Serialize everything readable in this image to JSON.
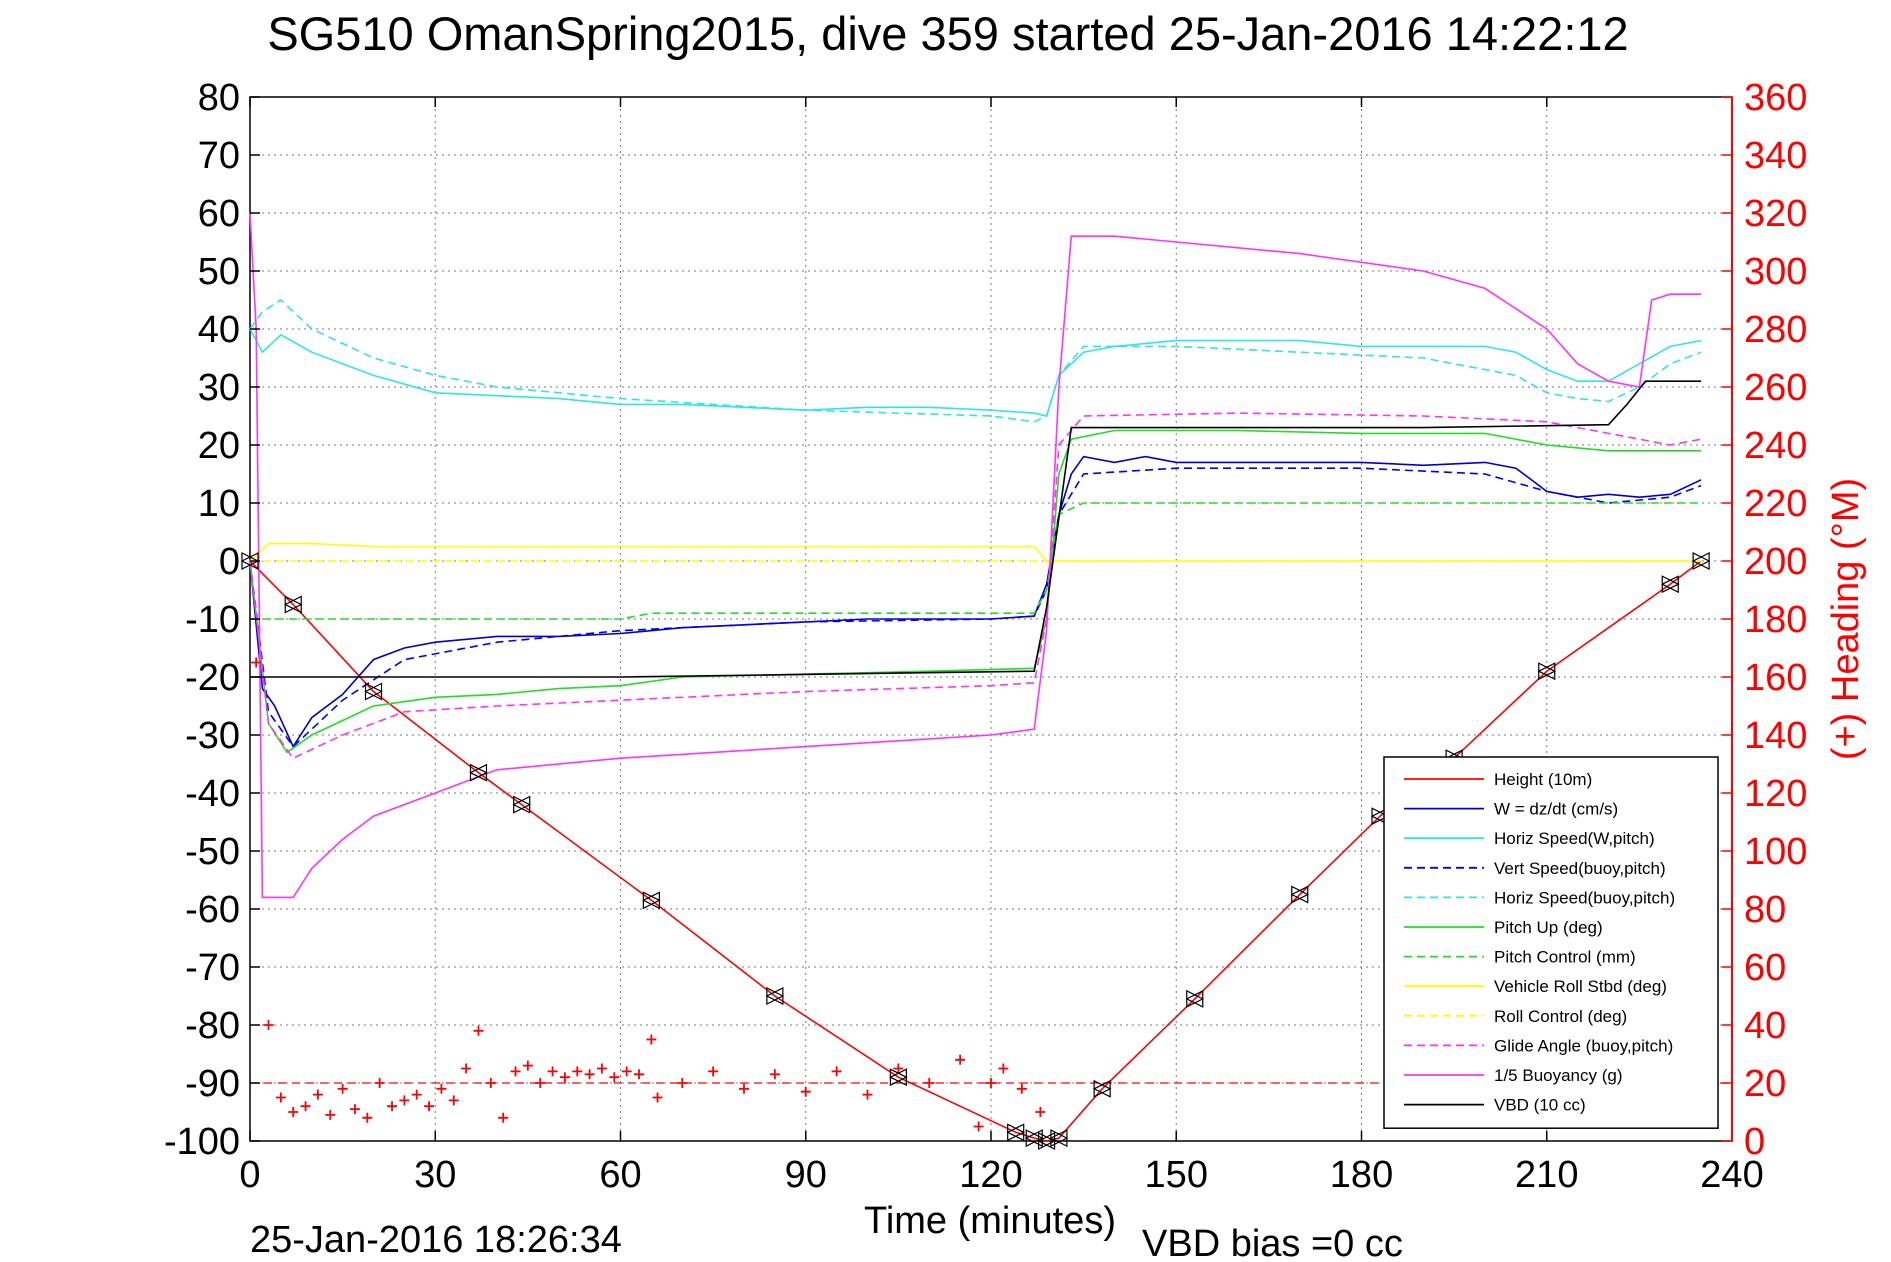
{
  "chart_data": {
    "type": "line",
    "title": "SG510 OmanSpring2015, dive 359 started 25-Jan-2016 14:22:12",
    "xlabel": "Time (minutes)",
    "ylabel_right": "(+) Heading (°M)",
    "footer_left": "25-Jan-2016 18:26:34",
    "footer_right": "VBD bias =0 cc",
    "xlim": [
      0,
      240
    ],
    "ylim": [
      -100,
      80
    ],
    "y2lim": [
      0,
      360
    ],
    "xticks": [
      0,
      30,
      60,
      90,
      120,
      150,
      180,
      210,
      240
    ],
    "yticks": [
      80,
      70,
      60,
      50,
      40,
      30,
      20,
      10,
      0,
      -10,
      -20,
      -30,
      -40,
      -50,
      -60,
      -70,
      -80,
      -90,
      -100
    ],
    "y2ticks": [
      360,
      340,
      320,
      300,
      280,
      260,
      240,
      220,
      200,
      180,
      160,
      140,
      120,
      100,
      80,
      60,
      40,
      20,
      0
    ],
    "grid": true,
    "legend_position": "bottom-right",
    "colors": {
      "height": "#ff0000",
      "w": "#0000cd",
      "horiz_w": "#2ee6e6",
      "vert_buoy": "#0000ff",
      "horiz_buoy": "#2ee6e6",
      "pitch_up": "#22dd22",
      "pitch_control": "#22dd22",
      "roll": "#ffff00",
      "roll_control": "#ffff00",
      "glide": "#ff33ff",
      "buoyancy": "#ff33ff",
      "vbd": "#000000",
      "heading": "#ff0000",
      "right_axis": "#ff0000"
    },
    "series": [
      {
        "name": "Height (10m)",
        "key": "height",
        "style": "solid",
        "x": [
          0,
          7,
          20,
          37,
          44,
          65,
          85,
          105,
          124,
          127,
          129,
          131,
          138,
          153,
          170,
          183,
          195,
          210,
          230,
          235
        ],
        "y": [
          0,
          -7.5,
          -22.5,
          -36.5,
          -42,
          -58.5,
          -75,
          -89,
          -98.5,
          -99.5,
          -100,
          -99.5,
          -91,
          -75.5,
          -57.5,
          -44,
          -34,
          -19,
          -4,
          0
        ]
      },
      {
        "name": "W = dz/dt (cm/s)",
        "key": "w",
        "style": "solid",
        "x": [
          0,
          2,
          4,
          7,
          10,
          15,
          20,
          25,
          30,
          40,
          50,
          60,
          70,
          80,
          90,
          100,
          110,
          120,
          127,
          129,
          131,
          133,
          135,
          140,
          145,
          150,
          160,
          170,
          180,
          190,
          200,
          205,
          210,
          215,
          220,
          225,
          230,
          235
        ],
        "y": [
          0,
          -22,
          -25,
          -32,
          -27,
          -23,
          -17,
          -15,
          -14,
          -13,
          -13,
          -12.5,
          -11.5,
          -11,
          -10.5,
          -10,
          -10,
          -10,
          -9.5,
          -4,
          8,
          15,
          18,
          17,
          18,
          17,
          17,
          17,
          17,
          16.5,
          17,
          16,
          12,
          11,
          11.5,
          11,
          11.5,
          14
        ]
      },
      {
        "name": "Horiz Speed(W,pitch)",
        "key": "horiz_w",
        "style": "solid",
        "x": [
          0,
          2,
          5,
          10,
          20,
          30,
          40,
          50,
          60,
          70,
          80,
          90,
          100,
          110,
          120,
          127,
          129,
          131,
          135,
          140,
          150,
          160,
          170,
          180,
          190,
          200,
          205,
          210,
          215,
          220,
          225,
          230,
          235
        ],
        "y": [
          40,
          36,
          39,
          36,
          32,
          29,
          28.5,
          28,
          27,
          27,
          26.5,
          26,
          26.5,
          26.5,
          26,
          25.5,
          25,
          32,
          36,
          37,
          38,
          38,
          38,
          37,
          37,
          37,
          36,
          33,
          31,
          31,
          34,
          37,
          38
        ]
      },
      {
        "name": "Vert Speed(buoy,pitch)",
        "key": "vert_buoy",
        "style": "dashed",
        "x": [
          0,
          3,
          7,
          15,
          25,
          40,
          60,
          90,
          120,
          127,
          129,
          131,
          135,
          150,
          180,
          200,
          210,
          220,
          230,
          235
        ],
        "y": [
          0,
          -26,
          -32,
          -24,
          -17,
          -14,
          -12,
          -10.5,
          -10,
          -9.5,
          -5,
          8,
          15,
          16,
          16,
          15,
          12,
          10,
          11,
          13
        ]
      },
      {
        "name": "Horiz Speed(buoy,pitch)",
        "key": "horiz_buoy",
        "style": "dashed",
        "x": [
          0,
          2,
          5,
          10,
          20,
          30,
          40,
          60,
          90,
          120,
          127,
          129,
          131,
          135,
          150,
          170,
          190,
          200,
          205,
          210,
          215,
          220,
          225,
          230,
          235
        ],
        "y": [
          40,
          43,
          45,
          40,
          35,
          32,
          30,
          28,
          26,
          25,
          24,
          25,
          32,
          37,
          37,
          36,
          35,
          33,
          32,
          29,
          28,
          27.5,
          30,
          34,
          36
        ]
      },
      {
        "name": "Pitch Up (deg)",
        "key": "pitch_up",
        "style": "solid",
        "x": [
          0,
          3,
          6,
          10,
          20,
          30,
          40,
          50,
          60,
          70,
          90,
          110,
          127,
          129,
          131,
          133,
          140,
          160,
          180,
          200,
          210,
          220,
          230,
          235
        ],
        "y": [
          0,
          -28,
          -33,
          -30,
          -25,
          -23.5,
          -23,
          -22,
          -21.5,
          -20,
          -19.5,
          -19,
          -18.5,
          -10,
          15,
          21,
          22.5,
          22.5,
          22,
          22,
          20,
          19,
          19,
          19
        ]
      },
      {
        "name": "Pitch Control (mm)",
        "key": "pitch_control",
        "style": "dashed",
        "x": [
          0,
          3,
          60,
          65,
          126,
          127,
          129,
          131,
          135,
          170,
          200,
          235
        ],
        "y": [
          -10,
          -10,
          -10,
          -9,
          -9,
          -9,
          -5,
          8,
          10,
          10,
          10,
          10
        ]
      },
      {
        "name": "Vehicle Roll Stbd (deg)",
        "key": "roll",
        "style": "solid",
        "x": [
          0,
          3,
          10,
          20,
          40,
          60,
          90,
          120,
          127,
          129,
          131,
          140,
          170,
          200,
          230,
          235
        ],
        "y": [
          0,
          3,
          3,
          2.5,
          2.5,
          2.5,
          2.5,
          2.5,
          2.5,
          0,
          0,
          0,
          0,
          0,
          0,
          0
        ]
      },
      {
        "name": "Roll Control (deg)",
        "key": "roll_control",
        "style": "dashed",
        "x": [
          0,
          3,
          127,
          129,
          235
        ],
        "y": [
          0,
          0,
          0,
          0,
          0
        ]
      },
      {
        "name": "Glide Angle (buoy,pitch)",
        "key": "glide",
        "style": "dashed",
        "x": [
          0,
          3,
          7,
          15,
          25,
          40,
          60,
          90,
          120,
          127,
          129,
          131,
          135,
          160,
          190,
          210,
          220,
          230,
          235
        ],
        "y": [
          0,
          -28,
          -34,
          -30,
          -26,
          -25,
          -24,
          -22.5,
          -21.5,
          -21,
          -10,
          20,
          25,
          25.5,
          25,
          24,
          22,
          20,
          21
        ]
      },
      {
        "name": "1/5 Buoyancy (g)",
        "key": "buoyancy",
        "style": "solid",
        "x": [
          0,
          1,
          2,
          7,
          10,
          15,
          20,
          30,
          40,
          60,
          90,
          120,
          127,
          129,
          131,
          133,
          140,
          150,
          170,
          190,
          200,
          210,
          215,
          220,
          225,
          227,
          230,
          235
        ],
        "y": [
          60,
          40,
          -58,
          -58,
          -53,
          -48,
          -44,
          -40,
          -36,
          -34,
          -32,
          -30,
          -29,
          -12,
          30,
          56,
          56,
          55,
          53,
          50,
          47,
          40,
          34,
          31,
          30,
          45,
          46,
          46
        ]
      },
      {
        "name": "VBD (10 cc)",
        "key": "vbd",
        "style": "solid",
        "x": [
          0,
          2,
          60,
          127,
          129,
          133,
          190,
          220,
          223,
          226,
          235
        ],
        "y": [
          -20,
          -20,
          -20,
          -19,
          -8,
          23,
          23,
          23.5,
          27,
          31,
          31
        ]
      }
    ],
    "heading": {
      "name": "Heading",
      "x": [
        1,
        3,
        5,
        7,
        9,
        11,
        13,
        15,
        17,
        19,
        21,
        23,
        25,
        27,
        29,
        31,
        33,
        35,
        37,
        39,
        41,
        43,
        45,
        47,
        49,
        51,
        53,
        55,
        57,
        59,
        61,
        63,
        65
      ],
      "y": [
        165,
        40,
        15,
        10,
        12,
        16,
        9,
        18,
        11,
        8,
        20,
        12,
        14,
        16,
        12,
        18,
        14,
        25,
        38,
        20,
        8,
        24,
        26,
        20,
        24,
        22,
        24,
        23,
        25,
        22,
        24,
        23,
        35
      ],
      "x2": [
        66,
        70,
        75,
        80,
        85,
        90,
        95,
        100,
        105,
        110,
        115,
        118,
        120,
        122,
        125,
        128
      ],
      "y2": [
        15,
        20,
        24,
        18,
        23,
        17,
        24,
        16,
        25,
        20,
        28,
        5,
        20,
        25,
        18,
        10
      ],
      "ref_y": 20
    }
  }
}
